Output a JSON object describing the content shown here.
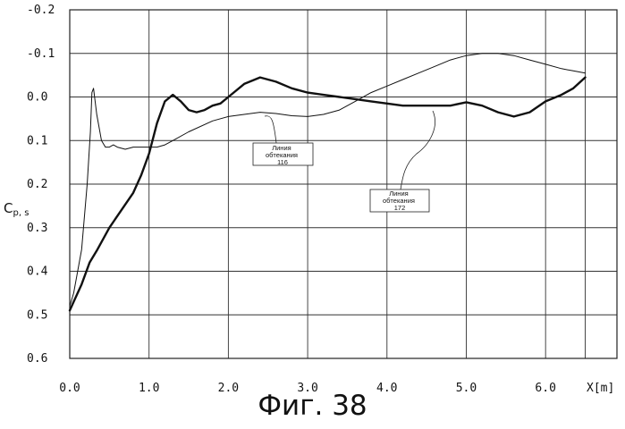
{
  "chart_data": {
    "type": "line",
    "xlabel": "X[m]",
    "ylabel": "Cp,s",
    "ylabel_main": "C",
    "ylabel_sub": "p, s",
    "xlim": [
      0.0,
      6.9
    ],
    "ylim": [
      -0.2,
      0.6
    ],
    "y_inverted": true,
    "grid": true,
    "x_ticks": [
      "0.0",
      "1.0",
      "2.0",
      "3.0",
      "4.0",
      "5.0",
      "6.0"
    ],
    "y_ticks": [
      "-0.2",
      "-0.1",
      "0.0",
      "0.1",
      "0.2",
      "0.3",
      "0.4",
      "0.5",
      "0.6"
    ],
    "series": [
      {
        "name": "",
        "style": "thick",
        "x": [
          0.0,
          0.05,
          0.15,
          0.25,
          0.35,
          0.5,
          0.65,
          0.8,
          0.9,
          1.0,
          1.1,
          1.2,
          1.3,
          1.4,
          1.5,
          1.6,
          1.7,
          1.8,
          1.9,
          2.0,
          2.2,
          2.4,
          2.6,
          2.8,
          3.0,
          3.2,
          3.4,
          3.6,
          3.8,
          4.0,
          4.2,
          4.4,
          4.6,
          4.8,
          5.0,
          5.2,
          5.4,
          5.6,
          5.8,
          6.0,
          6.2,
          6.35,
          6.5
        ],
        "y": [
          0.49,
          0.47,
          0.43,
          0.38,
          0.35,
          0.3,
          0.26,
          0.22,
          0.18,
          0.13,
          0.06,
          0.01,
          -0.005,
          0.01,
          0.03,
          0.035,
          0.03,
          0.02,
          0.015,
          0.0,
          -0.03,
          -0.045,
          -0.035,
          -0.02,
          -0.01,
          -0.005,
          0.0,
          0.005,
          0.01,
          0.015,
          0.02,
          0.02,
          0.02,
          0.02,
          0.012,
          0.02,
          0.035,
          0.045,
          0.035,
          0.01,
          -0.005,
          -0.02,
          -0.045
        ]
      },
      {
        "name": "",
        "style": "thin",
        "x": [
          0.0,
          0.05,
          0.15,
          0.22,
          0.26,
          0.28,
          0.3,
          0.34,
          0.4,
          0.45,
          0.5,
          0.55,
          0.6,
          0.7,
          0.8,
          0.9,
          1.0,
          1.1,
          1.2,
          1.3,
          1.5,
          1.8,
          2.0,
          2.2,
          2.4,
          2.6,
          2.8,
          3.0,
          3.2,
          3.4,
          3.6,
          3.8,
          4.0,
          4.2,
          4.4,
          4.6,
          4.8,
          5.0,
          5.2,
          5.4,
          5.6,
          5.8,
          6.0,
          6.2,
          6.35,
          6.5
        ],
        "y": [
          0.48,
          0.45,
          0.35,
          0.2,
          0.08,
          -0.01,
          -0.02,
          0.04,
          0.1,
          0.115,
          0.115,
          0.11,
          0.115,
          0.12,
          0.115,
          0.115,
          0.115,
          0.115,
          0.11,
          0.1,
          0.08,
          0.055,
          0.045,
          0.04,
          0.035,
          0.038,
          0.043,
          0.045,
          0.04,
          0.03,
          0.01,
          -0.01,
          -0.025,
          -0.04,
          -0.055,
          -0.07,
          -0.085,
          -0.095,
          -0.1,
          -0.1,
          -0.095,
          -0.085,
          -0.075,
          -0.065,
          -0.06,
          -0.055
        ]
      }
    ],
    "annotations": [
      {
        "lines": [
          "Линия",
          "обтекания",
          "116"
        ]
      },
      {
        "lines": [
          "Линия",
          "обтекания",
          "172"
        ]
      }
    ]
  },
  "figure": {
    "caption": "Фиг. 38"
  }
}
